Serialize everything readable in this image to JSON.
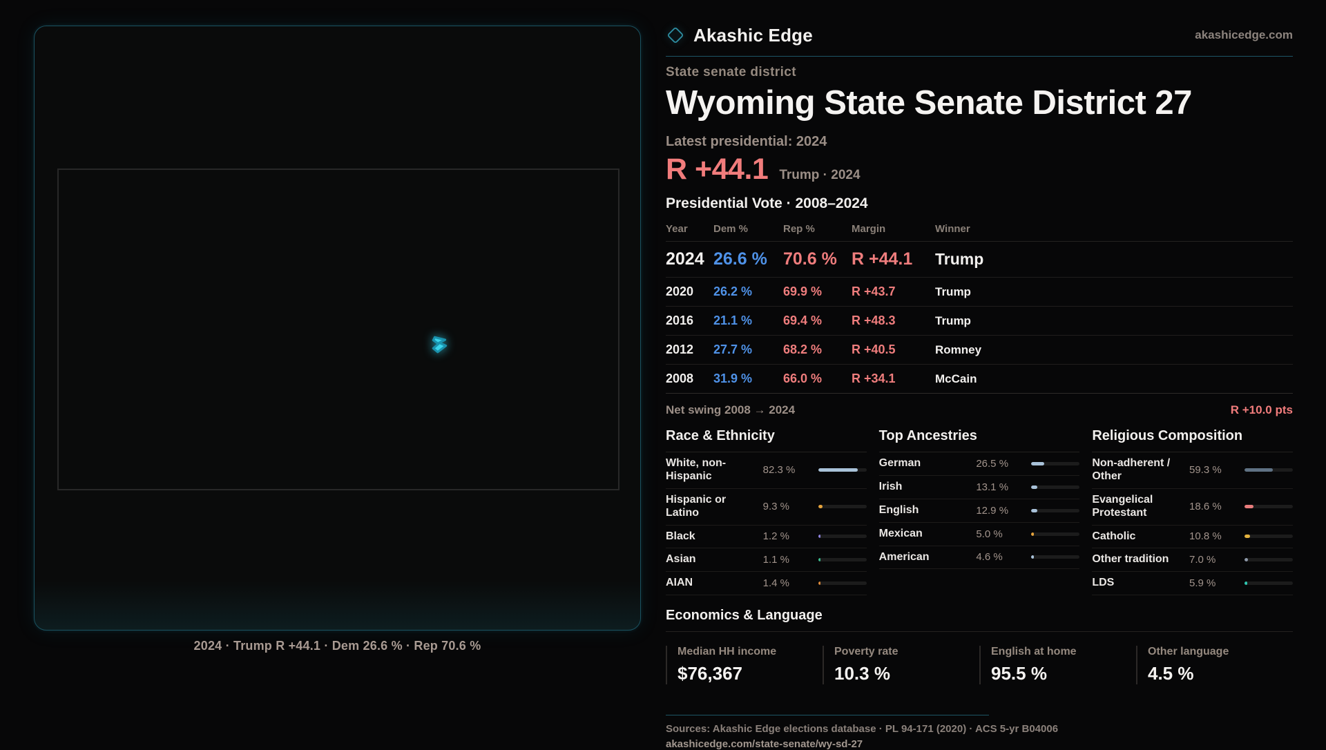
{
  "brand": {
    "name": "Akashic Edge",
    "site": "akashicedge.com"
  },
  "icons": {
    "brand_logo": "diamond-icon",
    "district": "district-shape-icon"
  },
  "page": {
    "kicker": "State senate district",
    "title": "Wyoming State Senate District 27"
  },
  "latest": {
    "label": "Latest presidential: 2024",
    "margin": "R +44.1",
    "context": "Trump · 2024"
  },
  "vote_table": {
    "title": "Presidential Vote · 2008–2024",
    "columns": [
      "Year",
      "Dem %",
      "Rep %",
      "Margin",
      "Winner"
    ],
    "rows": [
      {
        "year": "2024",
        "dem": "26.6 %",
        "rep": "70.6 %",
        "margin": "R +44.1",
        "winner": "Trump",
        "latest": true
      },
      {
        "year": "2020",
        "dem": "26.2 %",
        "rep": "69.9 %",
        "margin": "R +43.7",
        "winner": "Trump",
        "latest": false
      },
      {
        "year": "2016",
        "dem": "21.1 %",
        "rep": "69.4 %",
        "margin": "R +48.3",
        "winner": "Trump",
        "latest": false
      },
      {
        "year": "2012",
        "dem": "27.7 %",
        "rep": "68.2 %",
        "margin": "R +40.5",
        "winner": "Romney",
        "latest": false
      },
      {
        "year": "2008",
        "dem": "31.9 %",
        "rep": "66.0 %",
        "margin": "R +34.1",
        "winner": "McCain",
        "latest": false
      }
    ]
  },
  "net_swing": {
    "label": "Net swing 2008 → 2024",
    "value": "R +10.0 pts"
  },
  "demographics": [
    {
      "title": "Race & Ethnicity",
      "rows": [
        {
          "label": "White, non-Hispanic",
          "value": "82.3 %",
          "pct": 82.3,
          "color": "#a9c2d9"
        },
        {
          "label": "Hispanic or Latino",
          "value": "9.3 %",
          "pct": 9.3,
          "color": "#e5a33c"
        },
        {
          "label": "Black",
          "value": "1.2 %",
          "pct": 1.2,
          "color": "#8f83e0"
        },
        {
          "label": "Asian",
          "value": "1.1 %",
          "pct": 1.1,
          "color": "#3cbd8f"
        },
        {
          "label": "AIAN",
          "value": "1.4 %",
          "pct": 1.4,
          "color": "#de8a3a"
        }
      ]
    },
    {
      "title": "Top Ancestries",
      "rows": [
        {
          "label": "German",
          "value": "26.5 %",
          "pct": 26.5,
          "color": "#a9c2d9"
        },
        {
          "label": "Irish",
          "value": "13.1 %",
          "pct": 13.1,
          "color": "#a9c2d9"
        },
        {
          "label": "English",
          "value": "12.9 %",
          "pct": 12.9,
          "color": "#a9c2d9"
        },
        {
          "label": "Mexican",
          "value": "5.0 %",
          "pct": 5.0,
          "color": "#e5a33c"
        },
        {
          "label": "American",
          "value": "4.6 %",
          "pct": 4.6,
          "color": "#a9c2d9"
        }
      ]
    },
    {
      "title": "Religious Composition",
      "rows": [
        {
          "label": "Non-adherent / Other",
          "value": "59.3 %",
          "pct": 59.3,
          "color": "#5f7284"
        },
        {
          "label": "Evangelical Protestant",
          "value": "18.6 %",
          "pct": 18.6,
          "color": "#e87c7c"
        },
        {
          "label": "Catholic",
          "value": "10.8 %",
          "pct": 10.8,
          "color": "#e3b23e"
        },
        {
          "label": "Other tradition",
          "value": "7.0 %",
          "pct": 7.0,
          "color": "#8e99aa"
        },
        {
          "label": "LDS",
          "value": "5.9 %",
          "pct": 5.9,
          "color": "#2fc7b2"
        }
      ]
    }
  ],
  "economics": {
    "title": "Economics & Language",
    "stats": [
      {
        "label": "Median HH income",
        "value": "$76,367"
      },
      {
        "label": "Poverty rate",
        "value": "10.3 %"
      },
      {
        "label": "English at home",
        "value": "95.5 %"
      },
      {
        "label": "Other language",
        "value": "4.5 %"
      }
    ]
  },
  "map": {
    "caption": "2024 · Trump R +44.1 · Dem 26.6 % · Rep 70.6 %"
  },
  "footer": {
    "sources": "Sources: Akashic Edge elections database · PL 94-171 (2020) · ACS 5-yr B04006",
    "permalink": "akashicedge.com/state-senate/wy-sd-27"
  },
  "colors": {
    "dem_blue": "#4f92e8",
    "rep_red": "#ef7d7d",
    "accent_cyan": "#39d6ec",
    "panel_teal": "#1a5260"
  }
}
